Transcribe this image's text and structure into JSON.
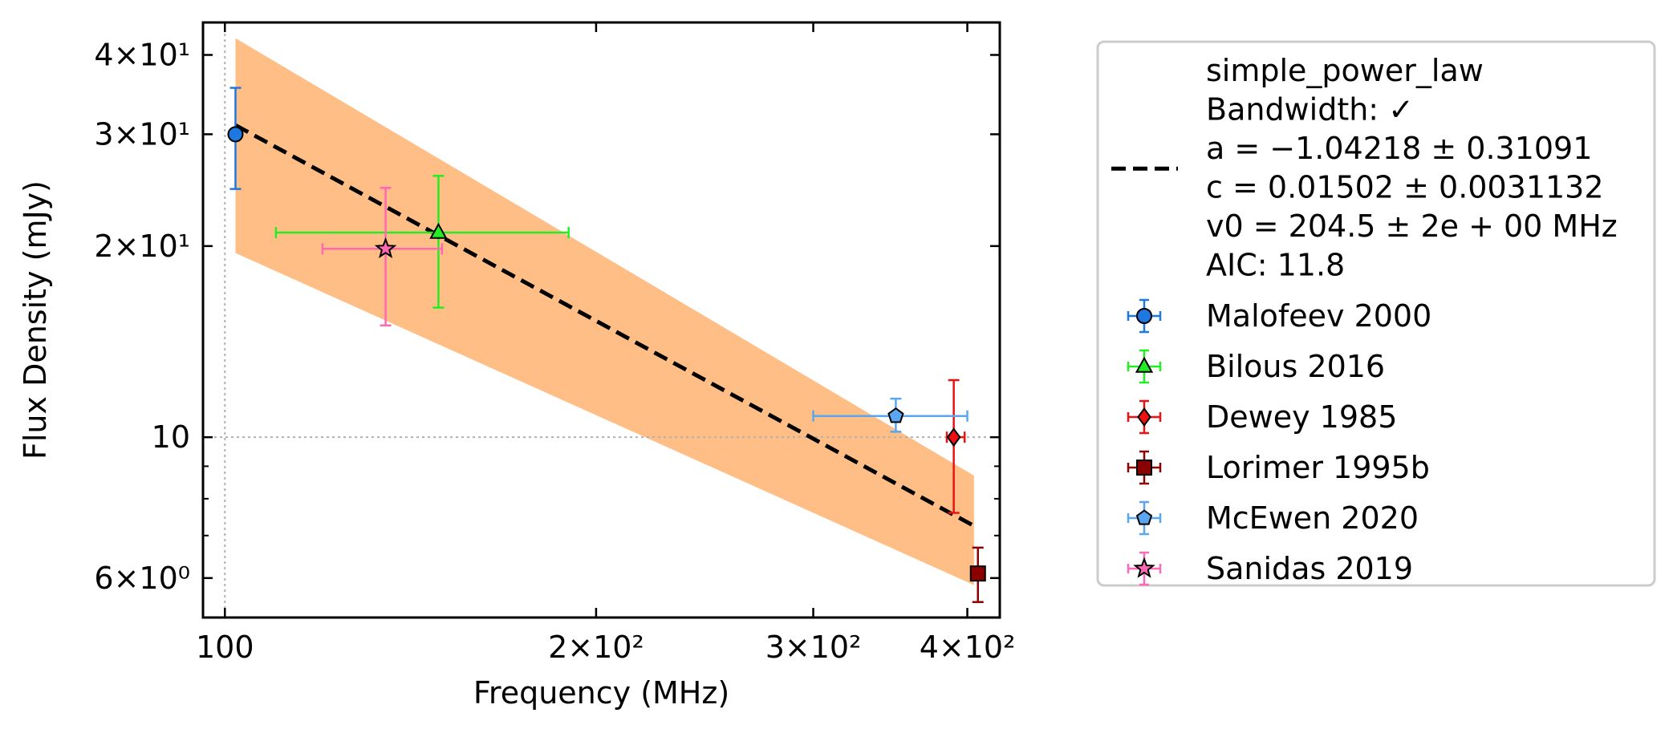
{
  "chart_data": {
    "type": "scatter",
    "xlabel": "Frequency (MHz)",
    "ylabel": "Flux Density (mJy)",
    "xscale": "log",
    "yscale": "log",
    "xlim": [
      96,
      425
    ],
    "ylim": [
      5.2,
      45
    ],
    "grid": false,
    "reference_lines": {
      "x": 100,
      "y": 10
    },
    "x_ticks": [
      {
        "value": 100,
        "label": "100"
      },
      {
        "value": 200,
        "label": "2×10²"
      },
      {
        "value": 300,
        "label": "3×10²"
      },
      {
        "value": 400,
        "label": "4×10²"
      }
    ],
    "y_ticks": [
      {
        "value": 6,
        "label": "6×10⁰"
      },
      {
        "value": 10,
        "label": "10"
      },
      {
        "value": 20,
        "label": "2×10¹"
      },
      {
        "value": 30,
        "label": "3×10¹"
      },
      {
        "value": 40,
        "label": "4×10¹"
      }
    ],
    "legend_position": "outside-right",
    "fit": {
      "name": "simple_power_law",
      "legend_lines": [
        "simple_power_law",
        "Bandwidth: ✓",
        "a = −1.04218 ± 0.31091",
        "c = 0.01502 ± 0.0031132",
        "v0 = 204.5 ± 2e + 00 MHz",
        "AIC: 11.8"
      ],
      "line_color": "#000000",
      "band_color": "#ffbe86",
      "line": {
        "x": [
          102,
          405
        ],
        "y": [
          31.0,
          7.25
        ]
      },
      "band": {
        "x": [
          102,
          405
        ],
        "upper": [
          42.5,
          8.7
        ],
        "lower": [
          19.5,
          5.85
        ]
      }
    },
    "series": [
      {
        "name": "Malofeev 2000",
        "marker": "circle",
        "color": "#1f77e0",
        "edge": "#1a5fb0",
        "points": [
          {
            "x": 102,
            "y": 30.0,
            "xerr": [
              0,
              0
            ],
            "yerr": [
              24.6,
              35.5
            ]
          }
        ]
      },
      {
        "name": "Bilous 2016",
        "marker": "triangle",
        "color": "#22ee22",
        "edge": "#22ee22",
        "points": [
          {
            "x": 149,
            "y": 21.0,
            "xerr": [
              110,
              190
            ],
            "yerr": [
              16.0,
              25.8
            ]
          }
        ]
      },
      {
        "name": "Dewey 1985",
        "marker": "diamond",
        "color": "#ee1111",
        "edge": "#ee1111",
        "points": [
          {
            "x": 390,
            "y": 10.0,
            "xerr": [
              385,
              398
            ],
            "yerr": [
              7.6,
              12.3
            ]
          }
        ]
      },
      {
        "name": "Lorimer 1995b",
        "marker": "square",
        "color": "#8b0000",
        "edge": "#8b0000",
        "points": [
          {
            "x": 408,
            "y": 6.1,
            "xerr": [
              0,
              0
            ],
            "yerr": [
              5.5,
              6.7
            ]
          }
        ]
      },
      {
        "name": "McEwen 2020",
        "marker": "pentagon",
        "color": "#5aa6f0",
        "edge": "#5aa6f0",
        "points": [
          {
            "x": 350,
            "y": 10.8,
            "xerr": [
              300,
              400
            ],
            "yerr": [
              10.2,
              11.5
            ]
          }
        ]
      },
      {
        "name": "Sanidas 2019",
        "marker": "star",
        "color": "#ff69b4",
        "edge": "#ff69b4",
        "points": [
          {
            "x": 135,
            "y": 19.8,
            "xerr": [
              120,
              150
            ],
            "yerr": [
              15.0,
              24.7
            ]
          }
        ]
      }
    ]
  }
}
